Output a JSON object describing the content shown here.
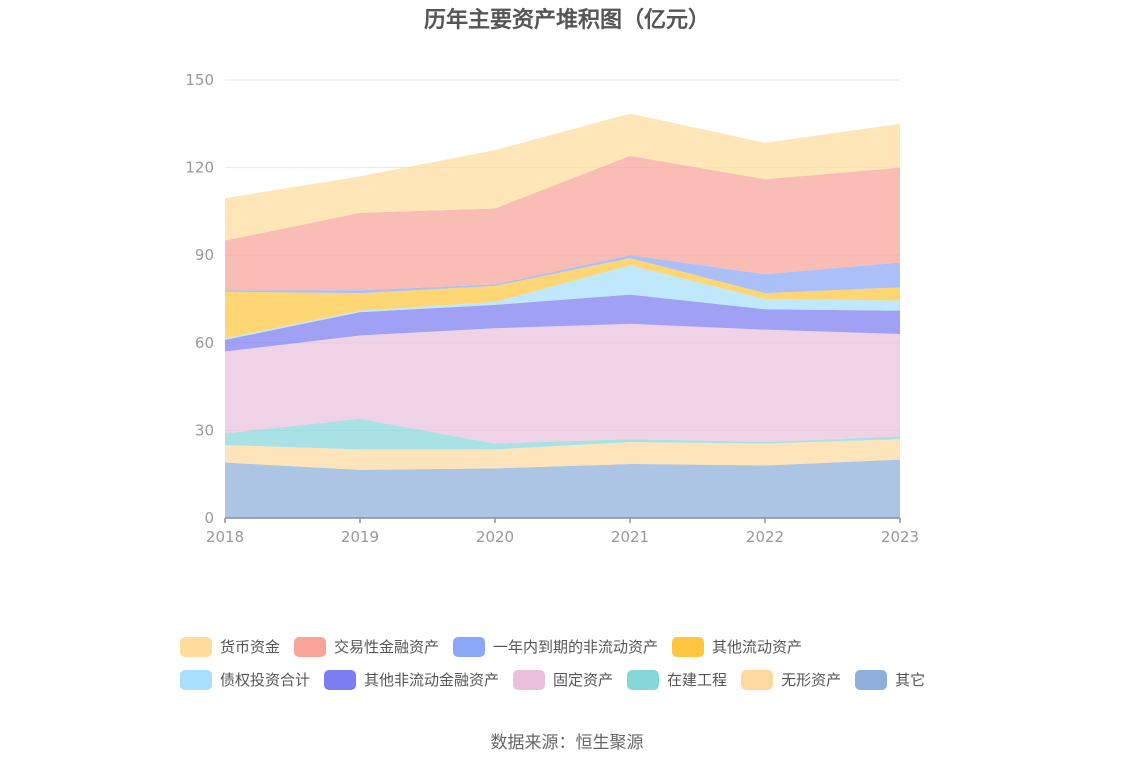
{
  "chart_data": {
    "type": "area",
    "stacked": true,
    "title": "历年主要资产堆积图（亿元）",
    "x": [
      "2018",
      "2019",
      "2020",
      "2021",
      "2022",
      "2023"
    ],
    "ylim": [
      0,
      150
    ],
    "yticks": [
      0,
      30,
      60,
      90,
      120,
      150
    ],
    "grid": true,
    "legend_position": "bottom",
    "series": [
      {
        "name": "其它",
        "color": "#8eaedb",
        "values": [
          19.0,
          16.5,
          17.0,
          18.5,
          18.0,
          20.0
        ]
      },
      {
        "name": "无形资产",
        "color": "#fdd9a0",
        "values": [
          6.0,
          7.0,
          6.5,
          7.5,
          7.5,
          7.0
        ]
      },
      {
        "name": "在建工程",
        "color": "#86d7d9",
        "values": [
          4.0,
          10.5,
          2.0,
          1.0,
          0.5,
          1.0
        ]
      },
      {
        "name": "固定资产",
        "color": "#eac0dc",
        "values": [
          28.0,
          28.5,
          39.5,
          39.5,
          38.5,
          35.0
        ]
      },
      {
        "name": "其他非流动金融资产",
        "color": "#7b7df0",
        "values": [
          4.0,
          8.0,
          8.0,
          10.0,
          7.0,
          8.0
        ]
      },
      {
        "name": "债权投资合计",
        "color": "#a8dffb",
        "values": [
          0.5,
          0.5,
          1.0,
          10.0,
          3.5,
          3.5
        ]
      },
      {
        "name": "其他流动资产",
        "color": "#fdc63e",
        "values": [
          16.0,
          6.0,
          5.5,
          2.5,
          2.0,
          4.5
        ]
      },
      {
        "name": "一年内到期的非流动资产",
        "color": "#8aa8f7",
        "values": [
          0.5,
          1.0,
          0.5,
          1.0,
          6.5,
          8.5
        ]
      },
      {
        "name": "交易性金融资产",
        "color": "#f8a498",
        "values": [
          17.0,
          26.5,
          26.0,
          34.0,
          32.5,
          32.5
        ]
      },
      {
        "name": "货币资金",
        "color": "#fddc9c",
        "values": [
          14.5,
          12.5,
          20.0,
          14.5,
          12.5,
          15.0
        ]
      }
    ],
    "legend_order": [
      "货币资金",
      "交易性金融资产",
      "一年内到期的非流动资产",
      "其他流动资产",
      "债权投资合计",
      "其他非流动金融资产",
      "固定资产",
      "在建工程",
      "无形资产",
      "其它"
    ]
  },
  "source_text": "数据来源：恒生聚源"
}
